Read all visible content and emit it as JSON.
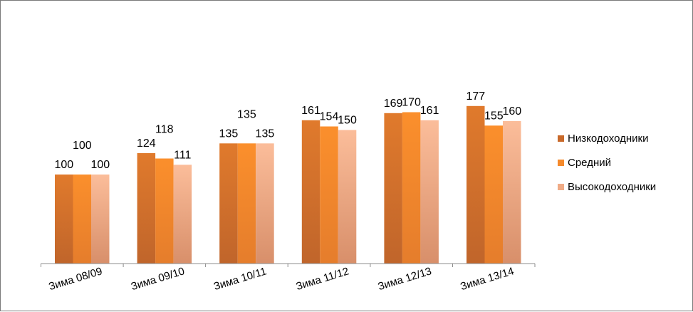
{
  "chart_data": {
    "type": "bar",
    "categories": [
      "Зима 08/09",
      "Зима 09/10",
      "Зима 10/11",
      "Зима 11/12",
      "Зима 12/13",
      "Зима 13/14"
    ],
    "series": [
      {
        "name": "Низкодоходники",
        "values": [
          100,
          124,
          135,
          161,
          169,
          177
        ],
        "color_top": "#e07a2c",
        "color_bottom": "#c0652b"
      },
      {
        "name": "Средний",
        "values": [
          100,
          118,
          135,
          154,
          170,
          155
        ],
        "color_top": "#fb8f2c",
        "color_bottom": "#e57d2c"
      },
      {
        "name": "Высокодоходники",
        "values": [
          100,
          111,
          135,
          150,
          161,
          160
        ],
        "color_top": "#fbbd9a",
        "color_bottom": "#d88f6a"
      }
    ],
    "ylim": [
      0,
      180
    ],
    "grid": false,
    "legend_position": "right",
    "xlabel": "",
    "ylabel": "",
    "title": ""
  }
}
